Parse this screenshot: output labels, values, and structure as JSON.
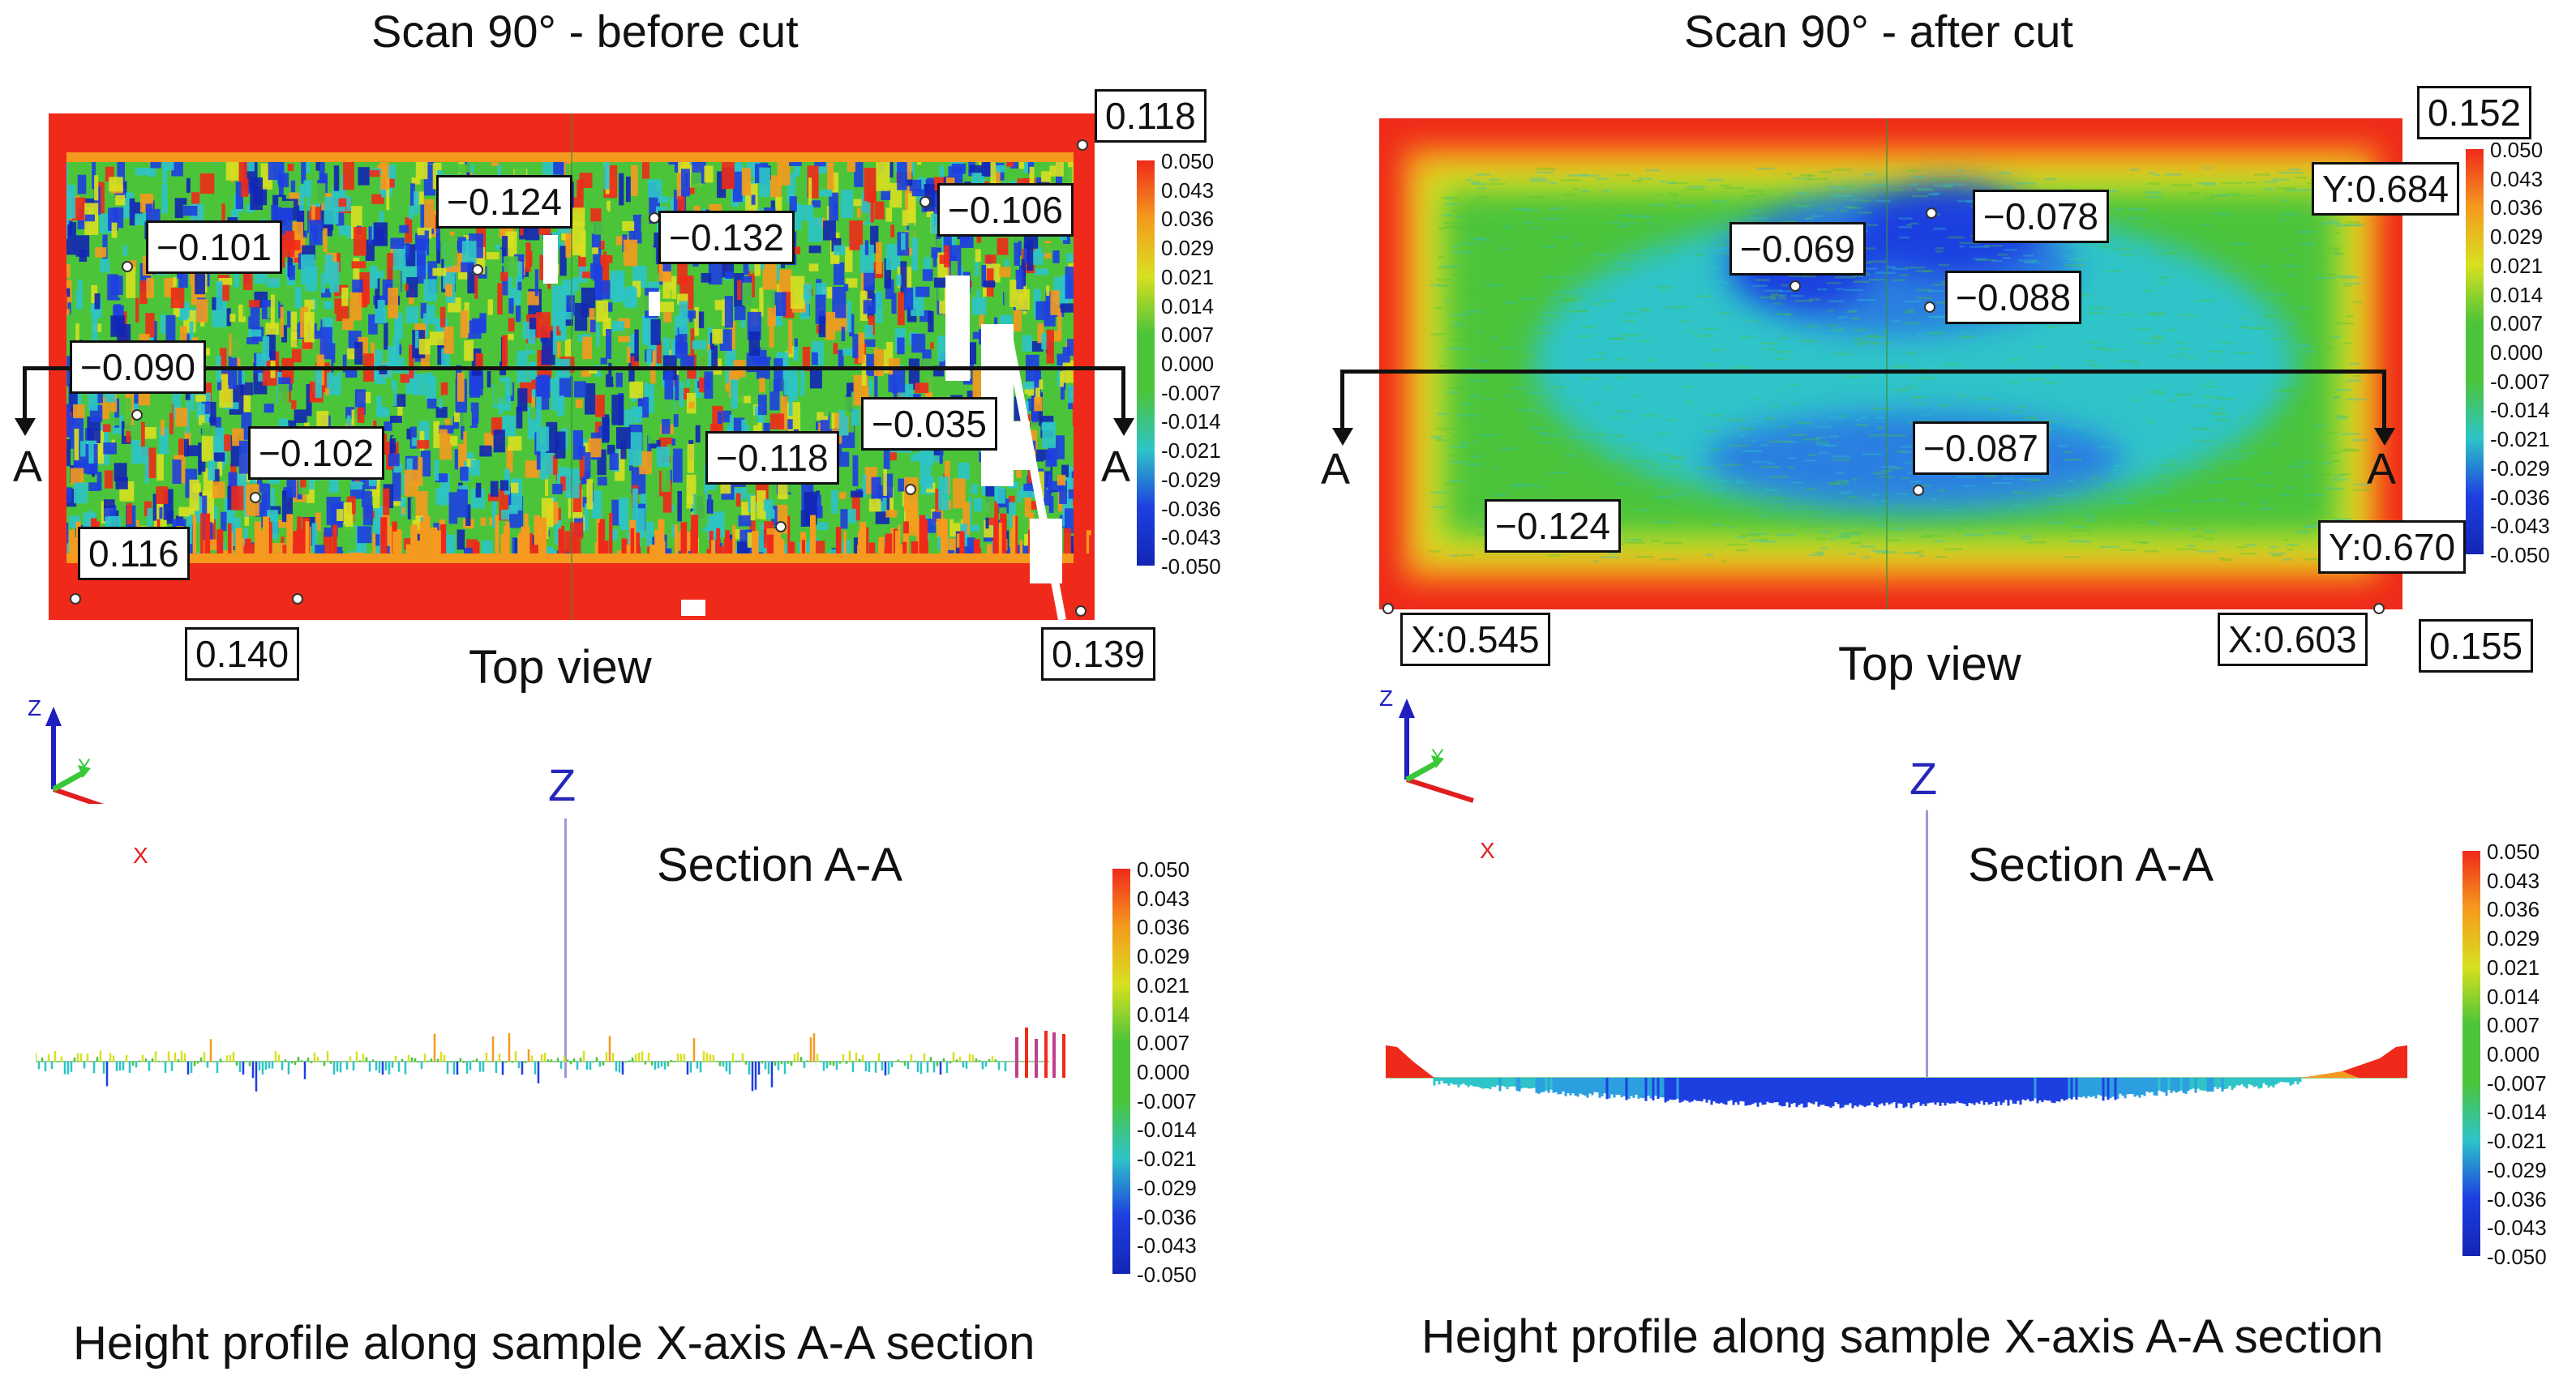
{
  "colors": {
    "red": "#ef2a1a",
    "orange": "#f59a1e",
    "yellow": "#d8e020",
    "green": "#4cc43a",
    "cyan": "#2ec4c8",
    "blue": "#1e3fe0",
    "dark_blue": "#1226b4",
    "axis_x": "#e01e1e",
    "axis_y": "#38c838",
    "axis_z": "#2020c0"
  },
  "scale_values": [
    "0.050",
    "0.043",
    "0.036",
    "0.029",
    "0.021",
    "0.014",
    "0.007",
    "0.000",
    "-0.007",
    "-0.014",
    "-0.021",
    "-0.029",
    "-0.036",
    "-0.043",
    "-0.050"
  ],
  "section_marker": "A",
  "axes_labels": {
    "x": "X",
    "y": "Y",
    "z": "Z"
  },
  "left": {
    "title": "Scan 90° - before cut",
    "top_view_label": "Top view",
    "section_label": "Section A-A",
    "z_label": "Z",
    "caption": "Height profile along sample X-axis A-A section",
    "callouts": [
      {
        "id": "c118",
        "text": "0.118"
      },
      {
        "id": "c124",
        "text": "−0.124"
      },
      {
        "id": "c132",
        "text": "−0.132"
      },
      {
        "id": "c106",
        "text": "−0.106"
      },
      {
        "id": "c101",
        "text": "−0.101"
      },
      {
        "id": "c090",
        "text": "−0.090"
      },
      {
        "id": "c102",
        "text": "−0.102"
      },
      {
        "id": "c118n",
        "text": "−0.118"
      },
      {
        "id": "c035",
        "text": "−0.035"
      },
      {
        "id": "c116",
        "text": "0.116"
      },
      {
        "id": "c140",
        "text": "0.140"
      },
      {
        "id": "c139",
        "text": "0.139"
      }
    ]
  },
  "right": {
    "title": "Scan 90° - after cut",
    "top_view_label": "Top view",
    "section_label": "Section A-A",
    "z_label": "Z",
    "caption": "Height profile along sample X-axis A-A section",
    "callouts": [
      {
        "id": "r152",
        "text": "0.152"
      },
      {
        "id": "r684",
        "text": "Y:0.684"
      },
      {
        "id": "r078",
        "text": "−0.078"
      },
      {
        "id": "r069",
        "text": "−0.069"
      },
      {
        "id": "r088",
        "text": "−0.088"
      },
      {
        "id": "r087",
        "text": "−0.087"
      },
      {
        "id": "r124",
        "text": "−0.124"
      },
      {
        "id": "r670",
        "text": "Y:0.670"
      },
      {
        "id": "r545",
        "text": "X:0.545"
      },
      {
        "id": "r603",
        "text": "X:0.603"
      },
      {
        "id": "r155",
        "text": "0.155"
      }
    ]
  }
}
